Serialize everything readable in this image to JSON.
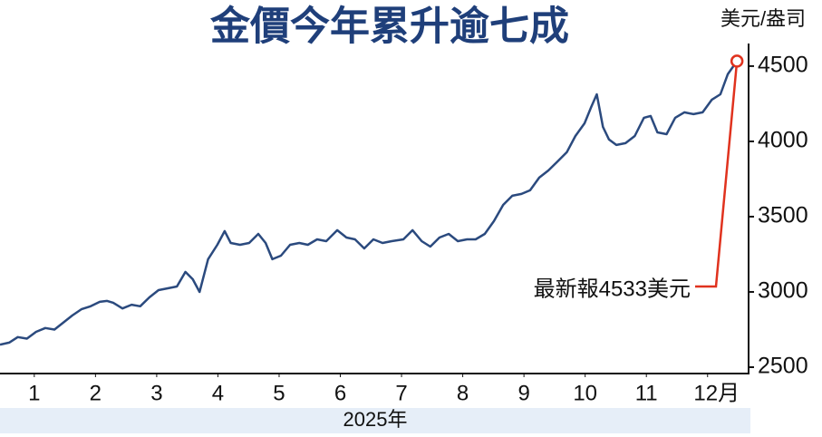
{
  "chart_data": {
    "type": "line",
    "title": "金價今年累升逾七成",
    "y_axis_label": "美元/盎司",
    "x_axis_label": "2025年",
    "annotation": "最新報4533美元",
    "x": [
      0.44,
      0.59,
      0.73,
      0.88,
      1.03,
      1.18,
      1.33,
      1.47,
      1.62,
      1.77,
      1.92,
      2.07,
      2.19,
      2.29,
      2.44,
      2.59,
      2.73,
      2.88,
      3.03,
      3.18,
      3.33,
      3.47,
      3.59,
      3.7,
      3.84,
      3.99,
      4.11,
      4.21,
      4.36,
      4.51,
      4.66,
      4.78,
      4.89,
      5.03,
      5.18,
      5.33,
      5.47,
      5.62,
      5.77,
      5.95,
      6.1,
      6.24,
      6.39,
      6.54,
      6.69,
      6.84,
      7.03,
      7.18,
      7.33,
      7.47,
      7.62,
      7.77,
      7.92,
      8.07,
      8.21,
      8.36,
      8.51,
      8.66,
      8.81,
      8.96,
      9.1,
      9.25,
      9.4,
      9.55,
      9.7,
      9.84,
      9.99,
      10.1,
      10.19,
      10.29,
      10.39,
      10.51,
      10.66,
      10.81,
      10.96,
      11.07,
      11.18,
      11.33,
      11.47,
      11.62,
      11.77,
      11.92,
      12.07,
      12.21,
      12.33,
      12.48
    ],
    "series": [
      {
        "name": "金價",
        "color": "#2b4a7e",
        "values": [
          2650,
          2663,
          2700,
          2690,
          2735,
          2760,
          2750,
          2795,
          2843,
          2885,
          2905,
          2934,
          2940,
          2928,
          2890,
          2915,
          2905,
          2964,
          3012,
          3024,
          3036,
          3133,
          3084,
          3000,
          3217,
          3313,
          3404,
          3325,
          3313,
          3325,
          3385,
          3325,
          3217,
          3241,
          3313,
          3325,
          3313,
          3349,
          3337,
          3410,
          3361,
          3349,
          3289,
          3349,
          3325,
          3337,
          3349,
          3410,
          3337,
          3301,
          3361,
          3385,
          3337,
          3349,
          3349,
          3385,
          3470,
          3578,
          3639,
          3651,
          3675,
          3759,
          3807,
          3867,
          3928,
          4036,
          4120,
          4229,
          4313,
          4096,
          4012,
          3976,
          3988,
          4036,
          4157,
          4169,
          4060,
          4048,
          4157,
          4193,
          4181,
          4193,
          4277,
          4313,
          4446,
          4533
        ]
      }
    ],
    "xlim": [
      0.44,
      12.67
    ],
    "xticks": [
      1,
      2,
      3,
      4,
      5,
      6,
      7,
      8,
      9,
      10,
      11,
      {
        "value": 12,
        "label": "12月"
      }
    ],
    "ylim": [
      2500,
      4650
    ],
    "yticks": [
      2500,
      3000,
      3500,
      4000,
      4500
    ],
    "title_color": "#1f3f7a",
    "annotation_color": "#e0321e",
    "band_color": "#e6eef8"
  }
}
